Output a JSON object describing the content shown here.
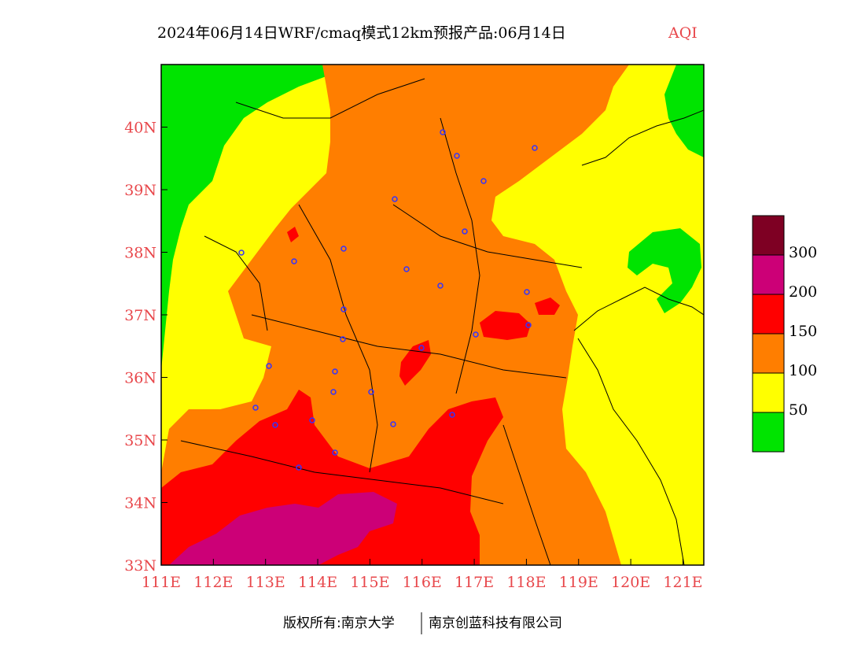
{
  "header": {
    "title": "2024年06月14日WRF/cmaq模式12km预报产品:06月14日",
    "variable": "AQI"
  },
  "axes": {
    "lat_labels": [
      "33N",
      "34N",
      "35N",
      "36N",
      "37N",
      "38N",
      "39N",
      "40N"
    ],
    "lon_labels": [
      "111E",
      "112E",
      "113E",
      "114E",
      "115E",
      "116E",
      "117E",
      "118E",
      "119E",
      "120E",
      "121E"
    ],
    "lat_range": [
      33,
      41
    ],
    "lon_range": [
      111,
      121.4
    ],
    "tick_color": "#e8474b"
  },
  "legend": {
    "thresholds": [
      "50",
      "100",
      "150",
      "200",
      "300"
    ],
    "colors": [
      {
        "level": "0-50",
        "color": "#00e400"
      },
      {
        "level": "50-100",
        "color": "#ffff00"
      },
      {
        "level": "100-150",
        "color": "#ff7e00"
      },
      {
        "level": "150-200",
        "color": "#ff0000"
      },
      {
        "level": "200-300",
        "color": "#cc0077"
      },
      {
        "level": ">300",
        "color": "#7e0023"
      }
    ]
  },
  "footer": {
    "copyright_left": "版权所有:南京大学",
    "copyright_right": "南京创蓝科技有限公司"
  }
}
